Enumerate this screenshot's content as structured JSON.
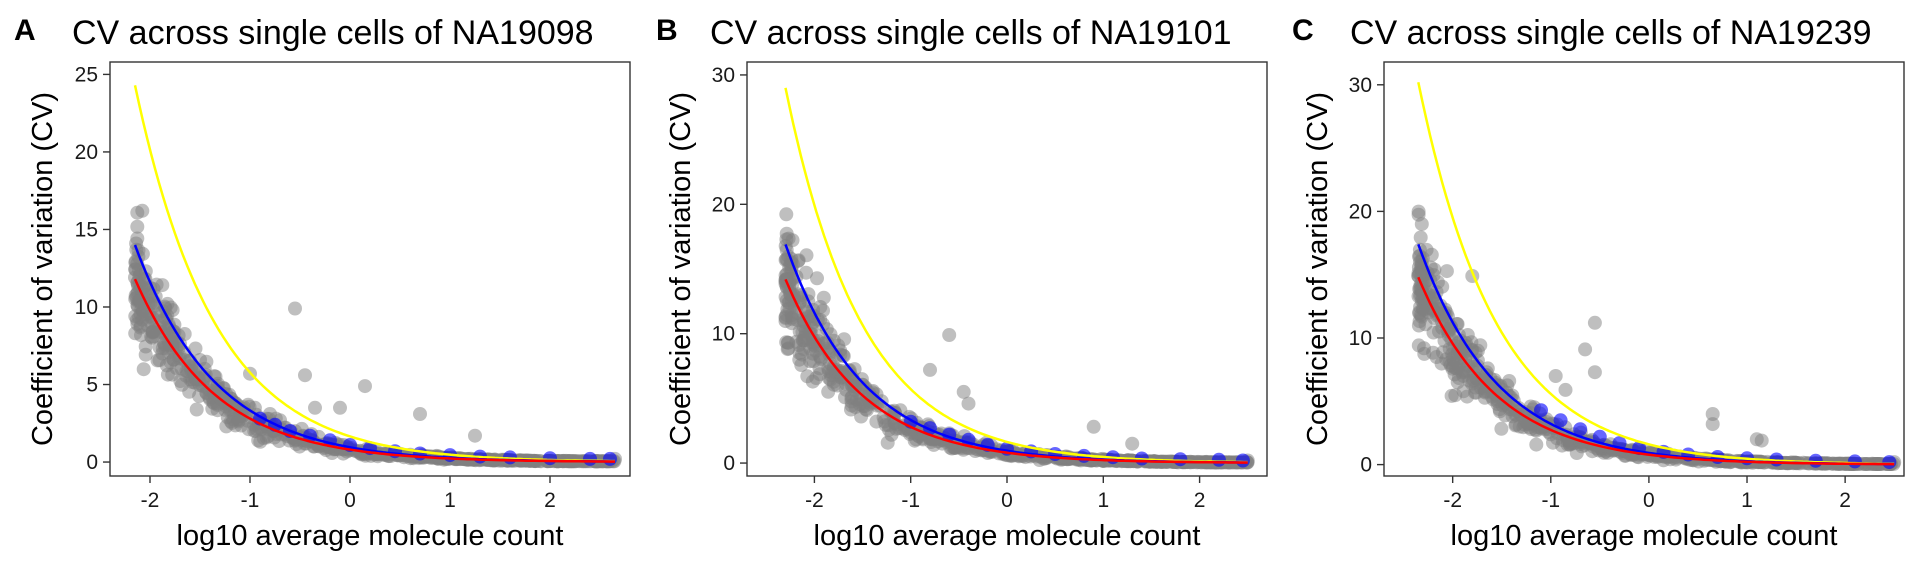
{
  "chart_data": [
    {
      "type": "scatter",
      "panel_label": "A",
      "title": "CV across single cells of NA19098",
      "xlabel": "log10 average molecule count",
      "ylabel": "Coefficient of variation (CV)",
      "xlim": [
        -2.4,
        2.8
      ],
      "ylim": [
        -0.9,
        25.8
      ],
      "xticks": [
        -2,
        -1,
        0,
        1,
        2
      ],
      "yticks": [
        0,
        5,
        10,
        15,
        20,
        25
      ],
      "grid": false,
      "legend": "none",
      "curve_x_range": [
        -2.15,
        2.65
      ],
      "curves": [
        {
          "color": "#ffff00",
          "a": 24.3,
          "k": 1.25
        },
        {
          "color": "#0000ff",
          "a": 14.0,
          "k": 1.25
        },
        {
          "color": "#ff0000",
          "a": 11.8,
          "k": 1.25
        }
      ],
      "series": [
        {
          "color": "#808080",
          "bulk": 650,
          "points": [
            [
              -2.15,
              11.9
            ],
            [
              -1.9,
              8.4
            ],
            [
              -1.7,
              6.8
            ],
            [
              -1.55,
              5.9
            ],
            [
              -1.0,
              5.7
            ],
            [
              -0.55,
              9.9
            ],
            [
              -0.45,
              5.6
            ],
            [
              -0.35,
              3.5
            ],
            [
              -0.1,
              3.5
            ],
            [
              0.15,
              4.9
            ],
            [
              0.7,
              3.1
            ],
            [
              1.25,
              1.7
            ],
            [
              -0.7,
              2.7
            ],
            [
              -0.8,
              3.1
            ],
            [
              2.65,
              0.2
            ]
          ]
        },
        {
          "color": "#0000ff",
          "bulk": 0,
          "points": [
            [
              -0.9,
              2.8
            ],
            [
              -0.75,
              2.4
            ],
            [
              -0.6,
              2.0
            ],
            [
              -0.4,
              1.7
            ],
            [
              -0.2,
              1.4
            ],
            [
              0.0,
              1.1
            ],
            [
              0.2,
              0.9
            ],
            [
              0.45,
              0.7
            ],
            [
              0.7,
              0.55
            ],
            [
              1.0,
              0.45
            ],
            [
              1.3,
              0.35
            ],
            [
              1.6,
              0.3
            ],
            [
              2.0,
              0.25
            ],
            [
              2.4,
              0.2
            ],
            [
              2.6,
              0.2
            ]
          ]
        }
      ]
    },
    {
      "type": "scatter",
      "panel_label": "B",
      "title": "CV across single cells of NA19101",
      "xlabel": "log10 average molecule count",
      "ylabel": "Coefficient of variation (CV)",
      "xlim": [
        -2.7,
        2.7
      ],
      "ylim": [
        -1.0,
        31.0
      ],
      "xticks": [
        -2,
        -1,
        0,
        1,
        2
      ],
      "yticks": [
        0,
        10,
        20,
        30
      ],
      "grid": false,
      "legend": "none",
      "curve_x_range": [
        -2.3,
        2.5
      ],
      "curves": [
        {
          "color": "#ffff00",
          "a": 29.0,
          "k": 1.25
        },
        {
          "color": "#0000ff",
          "a": 16.9,
          "k": 1.25
        },
        {
          "color": "#ff0000",
          "a": 14.2,
          "k": 1.25
        }
      ],
      "series": [
        {
          "color": "#808080",
          "bulk": 650,
          "points": [
            [
              -2.3,
              14.1
            ],
            [
              -2.05,
              10.0
            ],
            [
              -1.75,
              7.1
            ],
            [
              -1.6,
              6.2
            ],
            [
              -0.8,
              7.2
            ],
            [
              -0.6,
              9.9
            ],
            [
              -0.45,
              5.5
            ],
            [
              -0.4,
              4.6
            ],
            [
              0.9,
              2.8
            ],
            [
              1.3,
              1.5
            ],
            [
              2.5,
              0.2
            ]
          ]
        },
        {
          "color": "#0000ff",
          "bulk": 0,
          "points": [
            [
              -1.0,
              3.2
            ],
            [
              -0.8,
              2.7
            ],
            [
              -0.6,
              2.2
            ],
            [
              -0.4,
              1.8
            ],
            [
              -0.2,
              1.4
            ],
            [
              0.0,
              1.1
            ],
            [
              0.25,
              0.9
            ],
            [
              0.5,
              0.7
            ],
            [
              0.8,
              0.55
            ],
            [
              1.1,
              0.45
            ],
            [
              1.4,
              0.35
            ],
            [
              1.8,
              0.3
            ],
            [
              2.2,
              0.25
            ],
            [
              2.45,
              0.2
            ]
          ]
        }
      ]
    },
    {
      "type": "scatter",
      "panel_label": "C",
      "title": "CV across single cells of NA19239",
      "xlabel": "log10 average molecule count",
      "ylabel": "Coefficient of variation (CV)",
      "xlim": [
        -2.7,
        2.6
      ],
      "ylim": [
        -0.9,
        31.8
      ],
      "xticks": [
        -2,
        -1,
        0,
        1,
        2
      ],
      "yticks": [
        0,
        10,
        20,
        30
      ],
      "grid": false,
      "legend": "none",
      "curve_x_range": [
        -2.35,
        2.5
      ],
      "curves": [
        {
          "color": "#ffff00",
          "a": 30.2,
          "k": 1.25
        },
        {
          "color": "#0000ff",
          "a": 17.4,
          "k": 1.25
        },
        {
          "color": "#ff0000",
          "a": 14.8,
          "k": 1.25
        }
      ],
      "series": [
        {
          "color": "#808080",
          "bulk": 650,
          "points": [
            [
              -2.35,
              14.9
            ],
            [
              -2.05,
              10.5
            ],
            [
              -1.95,
              11.1
            ],
            [
              -1.8,
              8.2
            ],
            [
              -1.8,
              14.9
            ],
            [
              -1.65,
              6.2
            ],
            [
              -0.95,
              7.0
            ],
            [
              -0.85,
              5.9
            ],
            [
              -0.55,
              11.2
            ],
            [
              -0.55,
              7.3
            ],
            [
              -0.65,
              9.1
            ],
            [
              0.65,
              4.0
            ],
            [
              0.65,
              3.2
            ],
            [
              1.1,
              2.0
            ],
            [
              1.15,
              1.9
            ],
            [
              2.5,
              0.2
            ]
          ]
        },
        {
          "color": "#0000ff",
          "bulk": 0,
          "points": [
            [
              -1.1,
              4.3
            ],
            [
              -0.9,
              3.5
            ],
            [
              -0.7,
              2.8
            ],
            [
              -0.5,
              2.2
            ],
            [
              -0.3,
              1.7
            ],
            [
              -0.1,
              1.3
            ],
            [
              0.15,
              1.0
            ],
            [
              0.4,
              0.8
            ],
            [
              0.7,
              0.6
            ],
            [
              1.0,
              0.5
            ],
            [
              1.3,
              0.4
            ],
            [
              1.7,
              0.3
            ],
            [
              2.1,
              0.25
            ],
            [
              2.45,
              0.2
            ]
          ]
        }
      ]
    }
  ]
}
